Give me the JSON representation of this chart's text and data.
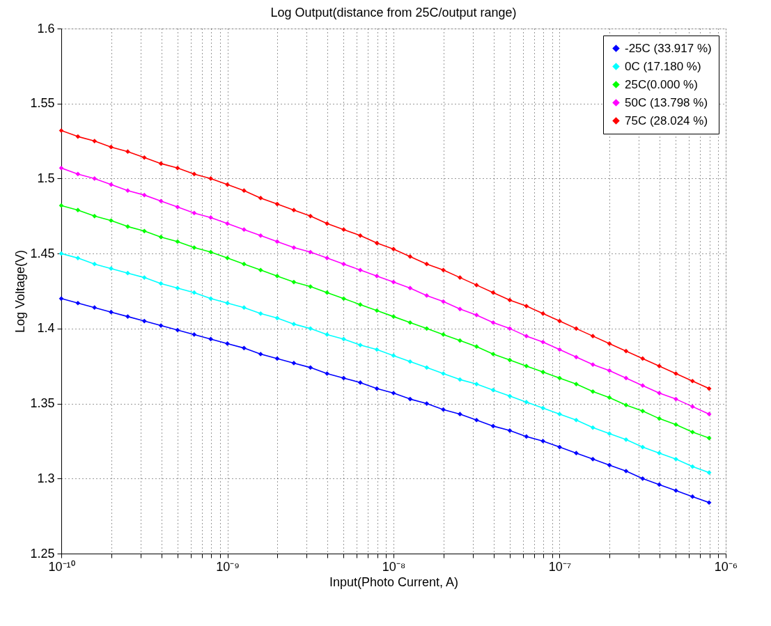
{
  "chart_data": {
    "type": "line",
    "title": "Log Output(distance from 25C/output range)",
    "xlabel": "Input(Photo Current, A)",
    "ylabel": "Log Voltage(V)",
    "log": "x",
    "grid": true,
    "legend": "top right",
    "marker": "diamond",
    "line_style": "solid",
    "xlim": [
      1e-10,
      1e-06
    ],
    "ylim": [
      1.25,
      1.6
    ],
    "xticks": [
      {
        "value": 1e-10,
        "label": "10⁻¹⁰"
      },
      {
        "value": 2e-10,
        "label": null
      },
      {
        "value": 3e-10,
        "label": null
      },
      {
        "value": 4e-10,
        "label": null
      },
      {
        "value": 5e-10,
        "label": null
      },
      {
        "value": 6e-10,
        "label": null
      },
      {
        "value": 7e-10,
        "label": null
      },
      {
        "value": 8e-10,
        "label": null
      },
      {
        "value": 9e-10,
        "label": null
      },
      {
        "value": 1e-09,
        "label": "10⁻⁹"
      },
      {
        "value": 2e-09,
        "label": null
      },
      {
        "value": 3e-09,
        "label": null
      },
      {
        "value": 4e-09,
        "label": null
      },
      {
        "value": 5e-09,
        "label": null
      },
      {
        "value": 6e-09,
        "label": null
      },
      {
        "value": 7e-09,
        "label": null
      },
      {
        "value": 8e-09,
        "label": null
      },
      {
        "value": 9e-09,
        "label": null
      },
      {
        "value": 1e-08,
        "label": "10⁻⁸"
      },
      {
        "value": 2e-08,
        "label": null
      },
      {
        "value": 3e-08,
        "label": null
      },
      {
        "value": 4e-08,
        "label": null
      },
      {
        "value": 5e-08,
        "label": null
      },
      {
        "value": 6e-08,
        "label": null
      },
      {
        "value": 7e-08,
        "label": null
      },
      {
        "value": 8e-08,
        "label": null
      },
      {
        "value": 9e-08,
        "label": null
      },
      {
        "value": 1e-07,
        "label": "10⁻⁷"
      },
      {
        "value": 2e-07,
        "label": null
      },
      {
        "value": 3e-07,
        "label": null
      },
      {
        "value": 4e-07,
        "label": null
      },
      {
        "value": 5e-07,
        "label": null
      },
      {
        "value": 6e-07,
        "label": null
      },
      {
        "value": 7e-07,
        "label": null
      },
      {
        "value": 8e-07,
        "label": null
      },
      {
        "value": 9e-07,
        "label": null
      },
      {
        "value": 1e-06,
        "label": "10⁻⁶"
      }
    ],
    "yticks": [
      1.25,
      1.3,
      1.35,
      1.4,
      1.45,
      1.5,
      1.55,
      1.6
    ],
    "x": [
      1e-10,
      1.259e-10,
      1.585e-10,
      1.995e-10,
      2.512e-10,
      3.162e-10,
      3.981e-10,
      5.012e-10,
      6.31e-10,
      7.943e-10,
      1e-09,
      1.259e-09,
      1.585e-09,
      1.995e-09,
      2.512e-09,
      3.162e-09,
      3.981e-09,
      5.012e-09,
      6.31e-09,
      7.943e-09,
      1e-08,
      1.259e-08,
      1.585e-08,
      1.995e-08,
      2.512e-08,
      3.162e-08,
      3.981e-08,
      5.012e-08,
      6.31e-08,
      7.943e-08,
      1e-07,
      1.259e-07,
      1.585e-07,
      1.995e-07,
      2.512e-07,
      3.162e-07,
      3.981e-07,
      5.012e-07,
      6.31e-07,
      7.943e-07
    ],
    "series": [
      {
        "name": "-25C (33.917 %)",
        "color": "#0000ff",
        "values": [
          1.42,
          1.417,
          1.414,
          1.411,
          1.408,
          1.405,
          1.402,
          1.399,
          1.396,
          1.393,
          1.39,
          1.387,
          1.383,
          1.38,
          1.377,
          1.374,
          1.37,
          1.367,
          1.364,
          1.36,
          1.357,
          1.353,
          1.35,
          1.346,
          1.343,
          1.339,
          1.335,
          1.332,
          1.328,
          1.325,
          1.321,
          1.317,
          1.313,
          1.309,
          1.305,
          1.3,
          1.296,
          1.292,
          1.288,
          1.284
        ]
      },
      {
        "name": "0C (17.180 %)",
        "color": "#00ffff",
        "values": [
          1.45,
          1.447,
          1.443,
          1.44,
          1.437,
          1.434,
          1.43,
          1.427,
          1.424,
          1.42,
          1.417,
          1.414,
          1.41,
          1.407,
          1.403,
          1.4,
          1.396,
          1.393,
          1.389,
          1.386,
          1.382,
          1.378,
          1.374,
          1.37,
          1.366,
          1.363,
          1.359,
          1.355,
          1.351,
          1.347,
          1.343,
          1.339,
          1.334,
          1.33,
          1.326,
          1.321,
          1.317,
          1.313,
          1.308,
          1.304
        ]
      },
      {
        "name": "25C(0.000 %)",
        "color": "#00ff00",
        "values": [
          1.482,
          1.479,
          1.475,
          1.472,
          1.468,
          1.465,
          1.461,
          1.458,
          1.454,
          1.451,
          1.447,
          1.443,
          1.439,
          1.435,
          1.431,
          1.428,
          1.424,
          1.42,
          1.416,
          1.412,
          1.408,
          1.404,
          1.4,
          1.396,
          1.392,
          1.388,
          1.383,
          1.379,
          1.375,
          1.371,
          1.367,
          1.363,
          1.358,
          1.354,
          1.349,
          1.345,
          1.34,
          1.336,
          1.331,
          1.327
        ]
      },
      {
        "name": "50C (13.798 %)",
        "color": "#ff00ff",
        "values": [
          1.507,
          1.503,
          1.5,
          1.496,
          1.492,
          1.489,
          1.485,
          1.481,
          1.477,
          1.474,
          1.47,
          1.466,
          1.462,
          1.458,
          1.454,
          1.451,
          1.447,
          1.443,
          1.439,
          1.435,
          1.431,
          1.427,
          1.422,
          1.418,
          1.413,
          1.409,
          1.404,
          1.4,
          1.395,
          1.391,
          1.386,
          1.381,
          1.376,
          1.372,
          1.367,
          1.362,
          1.357,
          1.353,
          1.348,
          1.343
        ]
      },
      {
        "name": "75C (28.024 %)",
        "color": "#ff0000",
        "values": [
          1.532,
          1.528,
          1.525,
          1.521,
          1.518,
          1.514,
          1.51,
          1.507,
          1.503,
          1.5,
          1.496,
          1.492,
          1.487,
          1.483,
          1.479,
          1.475,
          1.47,
          1.466,
          1.462,
          1.457,
          1.453,
          1.448,
          1.443,
          1.439,
          1.434,
          1.429,
          1.424,
          1.419,
          1.415,
          1.41,
          1.405,
          1.4,
          1.395,
          1.39,
          1.385,
          1.38,
          1.375,
          1.37,
          1.365,
          1.36
        ]
      }
    ]
  }
}
